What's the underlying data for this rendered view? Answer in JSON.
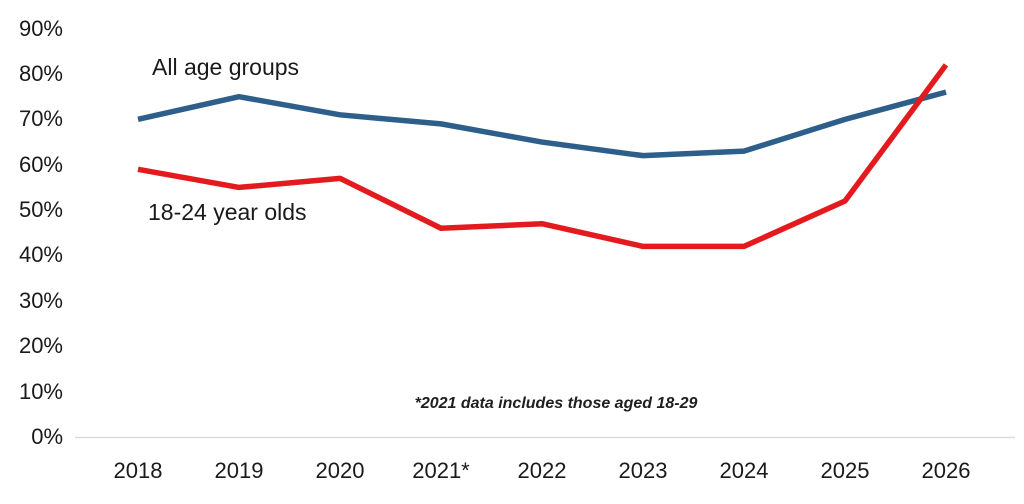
{
  "chart_data": {
    "type": "line",
    "categories": [
      "2018",
      "2019",
      "2020",
      "2021*",
      "2022",
      "2023",
      "2024",
      "2025",
      "2026"
    ],
    "series": [
      {
        "name": "All age groups",
        "color": "#2e5f8a",
        "values": [
          70,
          75,
          71,
          69,
          65,
          62,
          63,
          70,
          76
        ]
      },
      {
        "name": "18-24 year olds",
        "color": "#e31b1f",
        "values": [
          59,
          55,
          57,
          46,
          47,
          42,
          42,
          52,
          82
        ]
      }
    ],
    "y_axis": {
      "min": 0,
      "max": 90,
      "step": 10,
      "tick_labels": [
        "0%",
        "10%",
        "20%",
        "30%",
        "40%",
        "50%",
        "60%",
        "70%",
        "80%",
        "90%"
      ]
    },
    "footnote": "*2021 data includes those aged 18-29",
    "grid": false,
    "legend_position": "inline-annotations",
    "axis_line_color": "#dcdcdc",
    "text_color": "#1a1a1a"
  }
}
